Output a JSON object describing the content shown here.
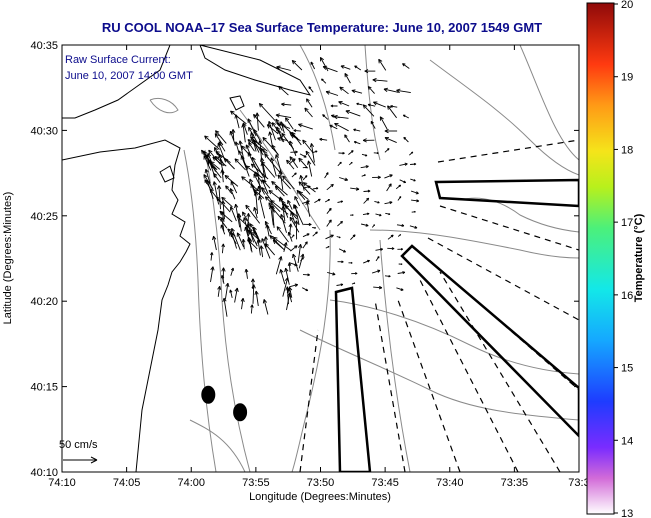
{
  "chart_data": {
    "type": "vector-field",
    "title": "RU COOL   NOAA–17  Sea Surface Temperature:  June 10, 2007 1549 GMT",
    "annotation": [
      "Raw Surface Current:",
      "June 10, 2007 14:00 GMT"
    ],
    "xlabel": "Longitude (Degrees:Minutes)",
    "ylabel": "Latitude (Degrees:Minutes)",
    "x_ticks": [
      "74:10",
      "74:05",
      "74:00",
      "73:55",
      "73:50",
      "73:45",
      "73:40",
      "73:35",
      "73:3"
    ],
    "y_ticks": [
      "40:35",
      "40:30",
      "40:25",
      "40:20",
      "40:15",
      "40:10"
    ],
    "xlim_min": [
      -74.1667,
      -73.5
    ],
    "ylim_deg": [
      40.1667,
      40.5833
    ],
    "scale_label": "50 cm/s",
    "colorbar": {
      "label": "Temperature (°C)",
      "ticks": [
        "20",
        "19",
        "18",
        "17",
        "16",
        "15",
        "14",
        "13"
      ],
      "range": [
        13,
        20
      ]
    },
    "markers": [
      {
        "lon": -73.978,
        "lat": 40.242
      },
      {
        "lon": -73.937,
        "lat": 40.225
      }
    ],
    "colors": {
      "title": "#0c0c8c",
      "coast": "#000000",
      "bathymetry": "#8a8a8a",
      "vectors": "#000000"
    }
  }
}
